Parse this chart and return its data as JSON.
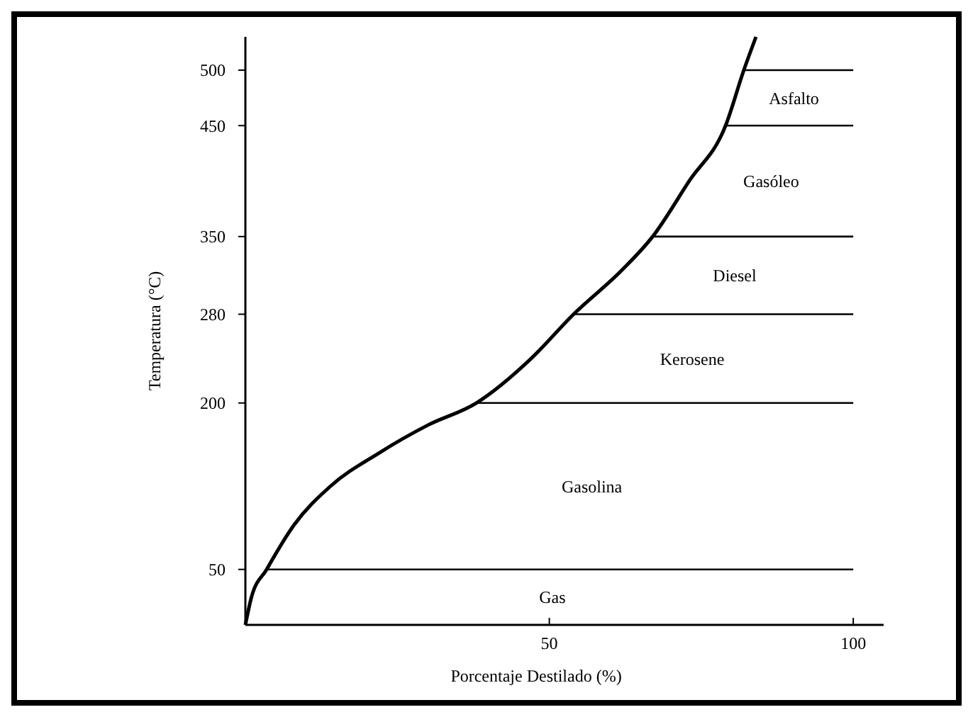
{
  "chart_data": {
    "type": "line",
    "xlabel": "Porcentaje Destilado (%)",
    "ylabel": "Temperatura (°C)",
    "xlim": [
      0,
      105
    ],
    "ylim": [
      0,
      530
    ],
    "xticks": [
      50,
      100
    ],
    "yticks": [
      50,
      200,
      280,
      350,
      450,
      500
    ],
    "grid": false,
    "marker": "none",
    "line_style": "solid",
    "series": [
      {
        "color": "#000000",
        "x": [
          0,
          1,
          3.5,
          8,
          14,
          22,
          30,
          38,
          47,
          54,
          62,
          67,
          73,
          79,
          82,
          84
        ],
        "values": [
          0,
          25,
          50,
          90,
          125,
          155,
          180,
          200,
          240,
          280,
          320,
          350,
          400,
          450,
          500,
          530
        ]
      },
      {
        "color": "#000000",
        "x": [
          3.5,
          100
        ],
        "values": [
          50,
          50
        ]
      },
      {
        "color": "#000000",
        "x": [
          38,
          100
        ],
        "values": [
          200,
          200
        ]
      },
      {
        "color": "#000000",
        "x": [
          54,
          100
        ],
        "values": [
          280,
          280
        ]
      },
      {
        "color": "#000000",
        "x": [
          67,
          100
        ],
        "values": [
          350,
          350
        ]
      },
      {
        "color": "#000000",
        "x": [
          79,
          100
        ],
        "values": [
          450,
          450
        ]
      },
      {
        "color": "#000000",
        "x": [
          82,
          100
        ],
        "values": [
          500,
          500
        ]
      }
    ],
    "annotations": [
      "Gas",
      "Gasolina",
      "Kerosene",
      "Diesel",
      "Gasóleo",
      "Asfalto"
    ]
  }
}
